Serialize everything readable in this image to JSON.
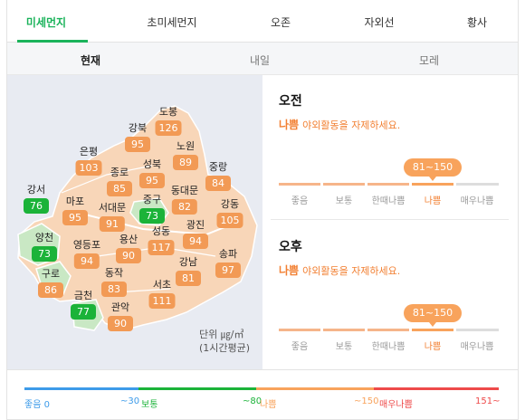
{
  "tabs": [
    "미세먼지",
    "초미세먼지",
    "오존",
    "자외선",
    "황사"
  ],
  "subtabs": [
    "현재",
    "내일",
    "모레"
  ],
  "districts": [
    {
      "name": "도봉",
      "value": "126",
      "level": "bad"
    },
    {
      "name": "강북",
      "value": "95",
      "level": "bad"
    },
    {
      "name": "노원",
      "value": "89",
      "level": "bad"
    },
    {
      "name": "은평",
      "value": "103",
      "level": "bad"
    },
    {
      "name": "종로",
      "value": "85",
      "level": "bad"
    },
    {
      "name": "성북",
      "value": "95",
      "level": "bad"
    },
    {
      "name": "중랑",
      "value": "84",
      "level": "bad"
    },
    {
      "name": "동대문",
      "value": "82",
      "level": "bad"
    },
    {
      "name": "강서",
      "value": "76",
      "level": "good"
    },
    {
      "name": "마포",
      "value": "95",
      "level": "bad"
    },
    {
      "name": "서대문",
      "value": "91",
      "level": "bad"
    },
    {
      "name": "중구",
      "value": "73",
      "level": "good"
    },
    {
      "name": "강동",
      "value": "105",
      "level": "bad"
    },
    {
      "name": "광진",
      "value": "94",
      "level": "bad"
    },
    {
      "name": "양천",
      "value": "73",
      "level": "good"
    },
    {
      "name": "영등포",
      "value": "94",
      "level": "bad"
    },
    {
      "name": "용산",
      "value": "90",
      "level": "bad"
    },
    {
      "name": "성동",
      "value": "117",
      "level": "bad"
    },
    {
      "name": "송파",
      "value": "97",
      "level": "bad"
    },
    {
      "name": "강남",
      "value": "81",
      "level": "bad"
    },
    {
      "name": "구로",
      "value": "86",
      "level": "bad"
    },
    {
      "name": "동작",
      "value": "83",
      "level": "bad"
    },
    {
      "name": "서초",
      "value": "111",
      "level": "bad"
    },
    {
      "name": "금천",
      "value": "77",
      "level": "good"
    },
    {
      "name": "관악",
      "value": "90",
      "level": "bad"
    }
  ],
  "map_unit": {
    "line1": "단위 ㎍/㎥",
    "line2": "(1시간평균)"
  },
  "panels": {
    "am": {
      "title": "오전",
      "level": "나쁨",
      "message": "야외활동을 자제하세요.",
      "range": "81~150"
    },
    "pm": {
      "title": "오후",
      "level": "나쁨",
      "message": "야외활동을 자제하세요.",
      "range": "81~150"
    }
  },
  "scale_labels": [
    "좋음",
    "보통",
    "한때나쁨",
    "나쁨",
    "매우나쁨"
  ],
  "scale_colors": [
    "#f6b58a",
    "#f6b58a",
    "#f6b58a",
    "#f8a35c",
    "#dddddd"
  ],
  "legend": {
    "items": [
      {
        "left": "좋음 0",
        "right": "~30",
        "color": "#3d9be9"
      },
      {
        "left": "보통",
        "right": "~80",
        "color": "#1bb339"
      },
      {
        "left": "나쁨",
        "right": "~150",
        "color": "#f8a35c"
      },
      {
        "left": "매우나쁨",
        "right": "151~",
        "color": "#ee4a4a"
      }
    ]
  },
  "colors": {
    "accent": "#1bb35b",
    "bad": "#f29a55",
    "good": "#1bb339",
    "warn_text": "#f28033"
  }
}
